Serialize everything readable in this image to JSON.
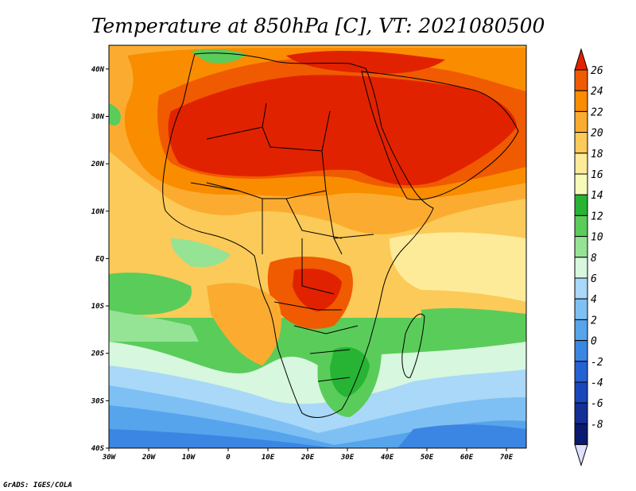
{
  "title": "Temperature at 850hPa [C], VT: 2021080500",
  "credit": "GrADS: IGES/COLA",
  "map": {
    "lon_labels": [
      "30W",
      "20W",
      "10W",
      "0",
      "10E",
      "20E",
      "30E",
      "40E",
      "50E",
      "60E",
      "70E"
    ],
    "lat_labels": [
      "40N",
      "30N",
      "20N",
      "10N",
      "EQ",
      "10S",
      "20S",
      "30S",
      "40S"
    ],
    "lon_range": [
      -30,
      75
    ],
    "lat_range": [
      -40,
      45
    ]
  },
  "colorbar": {
    "labels": [
      "26",
      "24",
      "22",
      "20",
      "18",
      "16",
      "14",
      "12",
      "10",
      "8",
      "6",
      "4",
      "2",
      "0",
      "-2",
      "-4",
      "-6",
      "-8"
    ],
    "colors": [
      "#e12200",
      "#f05a00",
      "#fa8c00",
      "#fbac30",
      "#fcca58",
      "#feeb9a",
      "#f7fbb8",
      "#27b435",
      "#5acc5a",
      "#95e395",
      "#d7f7de",
      "#a9d8f8",
      "#7ec0f4",
      "#56a4ec",
      "#3b86e3",
      "#2562d2",
      "#1a48bb",
      "#142f96",
      "#0a1a70",
      "#dfe1ff"
    ]
  }
}
